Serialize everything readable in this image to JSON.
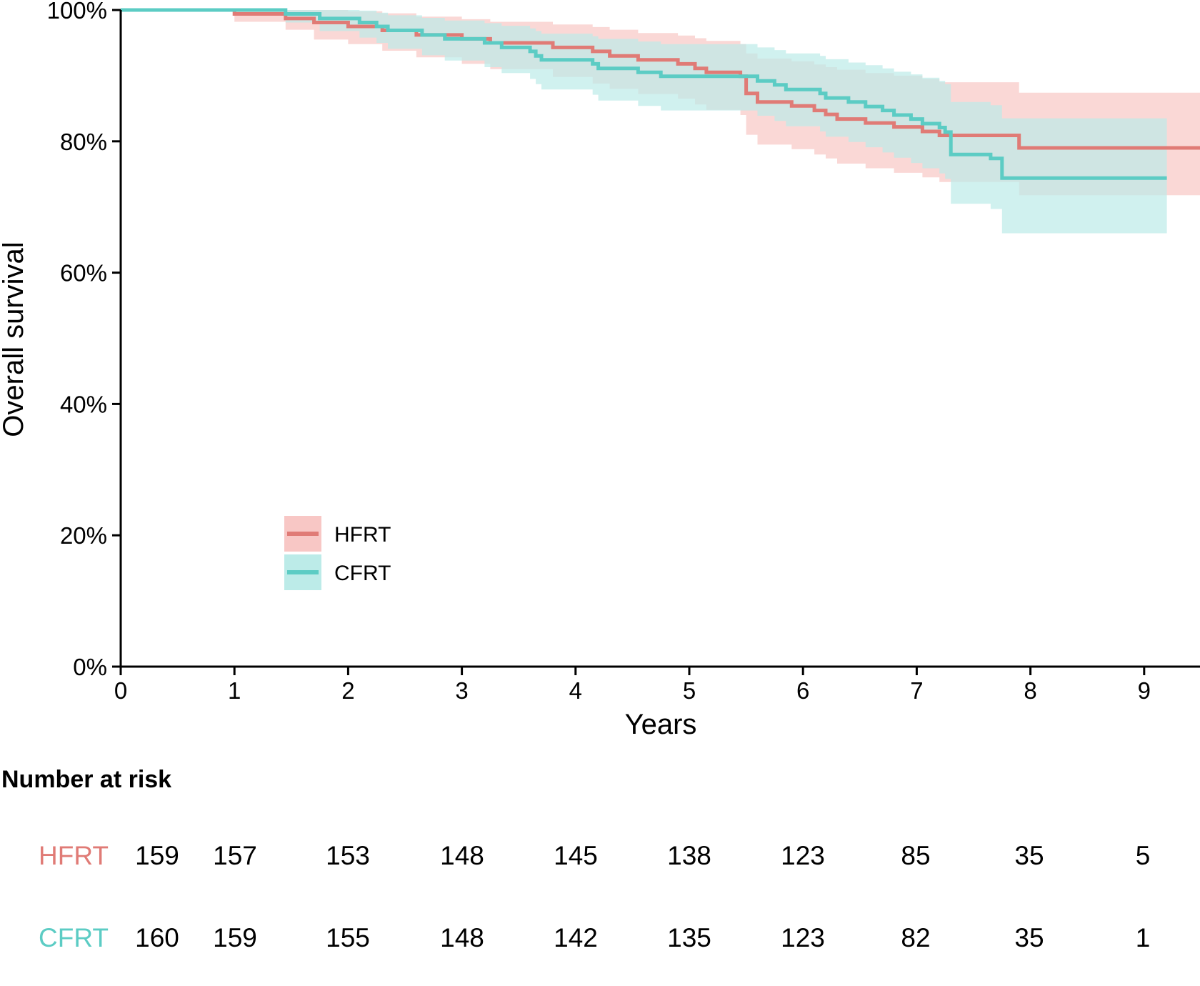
{
  "chart_data": {
    "type": "line",
    "subtype": "kaplan-meier",
    "xlabel": "Years",
    "ylabel": "Overall survival",
    "xlim": [
      0,
      9.5
    ],
    "ylim": [
      0,
      100
    ],
    "x_ticks": [
      "0",
      "1",
      "2",
      "3",
      "4",
      "5",
      "6",
      "7",
      "8",
      "9"
    ],
    "y_ticks": [
      "0%",
      "20%",
      "40%",
      "60%",
      "80%",
      "100%"
    ],
    "grid": false,
    "legend": {
      "placement": "bottom-left",
      "entries": [
        "HFRT",
        "CFRT"
      ]
    },
    "series": [
      {
        "name": "HFRT",
        "color": "#E07B76",
        "band_color": "#F8C7C5",
        "points": [
          [
            0,
            100
          ],
          [
            1.0,
            99.4
          ],
          [
            1.45,
            98.7
          ],
          [
            1.7,
            98.1
          ],
          [
            2.0,
            97.5
          ],
          [
            2.3,
            96.9
          ],
          [
            2.6,
            96.2
          ],
          [
            3.0,
            95.6
          ],
          [
            3.25,
            95.0
          ],
          [
            3.8,
            94.3
          ],
          [
            4.15,
            93.7
          ],
          [
            4.3,
            93.0
          ],
          [
            4.55,
            92.4
          ],
          [
            4.9,
            91.8
          ],
          [
            5.05,
            91.1
          ],
          [
            5.15,
            90.5
          ],
          [
            5.45,
            89.9
          ],
          [
            5.5,
            87.3
          ],
          [
            5.6,
            86.0
          ],
          [
            5.9,
            85.4
          ],
          [
            6.1,
            84.7
          ],
          [
            6.2,
            84.1
          ],
          [
            6.3,
            83.4
          ],
          [
            6.55,
            82.8
          ],
          [
            6.8,
            82.2
          ],
          [
            7.05,
            81.5
          ],
          [
            7.2,
            80.9
          ],
          [
            7.9,
            79.0
          ],
          [
            9.5,
            79.0
          ]
        ],
        "ci_lower": [
          [
            0,
            100
          ],
          [
            1.0,
            98.2
          ],
          [
            1.45,
            97.0
          ],
          [
            1.7,
            95.5
          ],
          [
            2.0,
            94.8
          ],
          [
            2.3,
            93.8
          ],
          [
            2.6,
            92.8
          ],
          [
            3.0,
            91.8
          ],
          [
            3.25,
            91.0
          ],
          [
            3.8,
            89.8
          ],
          [
            4.15,
            88.8
          ],
          [
            4.3,
            88.0
          ],
          [
            4.55,
            87.2
          ],
          [
            4.9,
            86.5
          ],
          [
            5.05,
            85.6
          ],
          [
            5.15,
            84.8
          ],
          [
            5.45,
            84.0
          ],
          [
            5.5,
            81.0
          ],
          [
            5.6,
            79.5
          ],
          [
            5.9,
            78.8
          ],
          [
            6.1,
            78.0
          ],
          [
            6.2,
            77.4
          ],
          [
            6.3,
            76.6
          ],
          [
            6.55,
            75.9
          ],
          [
            6.8,
            75.2
          ],
          [
            7.05,
            74.5
          ],
          [
            7.2,
            73.8
          ],
          [
            7.9,
            71.8
          ],
          [
            9.5,
            71.8
          ]
        ],
        "ci_upper": [
          [
            0,
            100
          ],
          [
            1.0,
            100
          ],
          [
            1.45,
            100
          ],
          [
            1.7,
            100
          ],
          [
            2.0,
            99.8
          ],
          [
            2.3,
            99.5
          ],
          [
            2.6,
            99.0
          ],
          [
            3.0,
            98.6
          ],
          [
            3.25,
            98.2
          ],
          [
            3.8,
            97.8
          ],
          [
            4.15,
            97.4
          ],
          [
            4.3,
            97.0
          ],
          [
            4.55,
            96.5
          ],
          [
            4.9,
            96.1
          ],
          [
            5.05,
            95.7
          ],
          [
            5.15,
            95.3
          ],
          [
            5.45,
            94.8
          ],
          [
            5.5,
            93.4
          ],
          [
            5.6,
            92.6
          ],
          [
            5.9,
            92.2
          ],
          [
            6.1,
            91.7
          ],
          [
            6.2,
            91.3
          ],
          [
            6.3,
            90.9
          ],
          [
            6.55,
            90.4
          ],
          [
            6.8,
            90.0
          ],
          [
            7.05,
            89.5
          ],
          [
            7.2,
            89.0
          ],
          [
            7.9,
            87.4
          ],
          [
            9.5,
            87.4
          ]
        ]
      },
      {
        "name": "CFRT",
        "color": "#5CCCC4",
        "band_color": "#BCEBE8",
        "points": [
          [
            0,
            100
          ],
          [
            1.45,
            99.4
          ],
          [
            1.75,
            98.7
          ],
          [
            2.1,
            98.1
          ],
          [
            2.25,
            97.5
          ],
          [
            2.35,
            96.9
          ],
          [
            2.65,
            96.2
          ],
          [
            2.85,
            95.6
          ],
          [
            3.2,
            95.0
          ],
          [
            3.35,
            94.3
          ],
          [
            3.6,
            93.7
          ],
          [
            3.65,
            93.0
          ],
          [
            3.7,
            92.4
          ],
          [
            4.15,
            91.8
          ],
          [
            4.2,
            91.1
          ],
          [
            4.55,
            90.5
          ],
          [
            4.75,
            89.9
          ],
          [
            5.5,
            89.9
          ],
          [
            5.6,
            89.2
          ],
          [
            5.75,
            88.6
          ],
          [
            5.85,
            87.9
          ],
          [
            6.15,
            87.3
          ],
          [
            6.2,
            86.6
          ],
          [
            6.4,
            86.0
          ],
          [
            6.55,
            85.3
          ],
          [
            6.7,
            84.7
          ],
          [
            6.8,
            84.0
          ],
          [
            6.95,
            83.4
          ],
          [
            7.05,
            82.7
          ],
          [
            7.2,
            82.1
          ],
          [
            7.25,
            81.4
          ],
          [
            7.3,
            78.0
          ],
          [
            7.65,
            77.4
          ],
          [
            7.75,
            74.4
          ],
          [
            9.2,
            74.4
          ]
        ],
        "ci_lower": [
          [
            0,
            100
          ],
          [
            1.45,
            98.1
          ],
          [
            1.75,
            96.8
          ],
          [
            2.1,
            95.8
          ],
          [
            2.25,
            95.0
          ],
          [
            2.35,
            94.1
          ],
          [
            2.65,
            93.1
          ],
          [
            2.85,
            92.3
          ],
          [
            3.2,
            91.3
          ],
          [
            3.35,
            90.4
          ],
          [
            3.6,
            89.5
          ],
          [
            3.65,
            88.7
          ],
          [
            3.7,
            87.9
          ],
          [
            4.15,
            87.1
          ],
          [
            4.2,
            86.2
          ],
          [
            4.55,
            85.4
          ],
          [
            4.75,
            84.7
          ],
          [
            5.5,
            84.7
          ],
          [
            5.6,
            83.9
          ],
          [
            5.75,
            83.1
          ],
          [
            5.85,
            82.3
          ],
          [
            6.15,
            81.5
          ],
          [
            6.2,
            80.7
          ],
          [
            6.4,
            79.9
          ],
          [
            6.55,
            79.1
          ],
          [
            6.7,
            78.3
          ],
          [
            6.8,
            77.5
          ],
          [
            6.95,
            76.7
          ],
          [
            7.05,
            75.9
          ],
          [
            7.2,
            75.1
          ],
          [
            7.25,
            74.3
          ],
          [
            7.3,
            70.5
          ],
          [
            7.65,
            69.7
          ],
          [
            7.75,
            66.0
          ],
          [
            9.2,
            66.0
          ]
        ],
        "ci_upper": [
          [
            0,
            100
          ],
          [
            1.45,
            100
          ],
          [
            1.75,
            100
          ],
          [
            2.1,
            99.9
          ],
          [
            2.25,
            99.6
          ],
          [
            2.35,
            99.2
          ],
          [
            2.65,
            98.8
          ],
          [
            2.85,
            98.4
          ],
          [
            3.2,
            98.0
          ],
          [
            3.35,
            97.6
          ],
          [
            3.6,
            97.2
          ],
          [
            3.65,
            96.8
          ],
          [
            3.7,
            96.4
          ],
          [
            4.15,
            96.0
          ],
          [
            4.2,
            95.6
          ],
          [
            4.55,
            95.2
          ],
          [
            4.75,
            94.8
          ],
          [
            5.5,
            94.8
          ],
          [
            5.6,
            94.3
          ],
          [
            5.75,
            93.9
          ],
          [
            5.85,
            93.4
          ],
          [
            6.15,
            93.0
          ],
          [
            6.2,
            92.5
          ],
          [
            6.4,
            92.0
          ],
          [
            6.55,
            91.6
          ],
          [
            6.7,
            91.1
          ],
          [
            6.8,
            90.6
          ],
          [
            6.95,
            90.2
          ],
          [
            7.05,
            89.7
          ],
          [
            7.2,
            89.2
          ],
          [
            7.25,
            88.7
          ],
          [
            7.3,
            86.0
          ],
          [
            7.65,
            85.5
          ],
          [
            7.75,
            83.5
          ],
          [
            9.2,
            83.5
          ]
        ]
      }
    ]
  },
  "risk_table": {
    "title": "Number at risk",
    "rows": [
      {
        "label": "HFRT",
        "color": "#E07B76",
        "values": [
          "159",
          "157",
          "153",
          "148",
          "145",
          "138",
          "123",
          "85",
          "35",
          "5"
        ]
      },
      {
        "label": "CFRT",
        "color": "#5CCCC4",
        "values": [
          "160",
          "159",
          "155",
          "148",
          "142",
          "135",
          "123",
          "82",
          "35",
          "1"
        ]
      }
    ]
  }
}
